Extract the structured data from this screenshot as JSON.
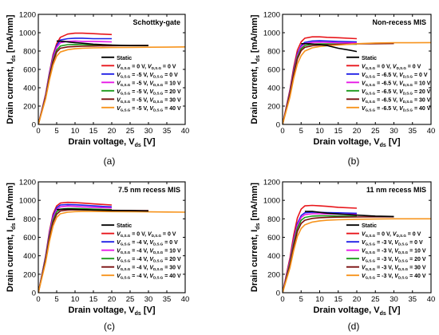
{
  "figure": {
    "panel_labels": [
      "(a)",
      "(b)",
      "(c)",
      "(d)"
    ]
  },
  "chart_data": [
    {
      "type": "line",
      "title": "Schottky-gate",
      "xlabel": "Drain voltage, V",
      "xlabel_sub": "ds",
      "xlabel_unit": " [V]",
      "ylabel": "Drain current, I",
      "ylabel_sub": "ds",
      "ylabel_unit": " [mA/mm]",
      "xlim": [
        0,
        40
      ],
      "ylim": [
        0,
        1200
      ],
      "xticks": [
        0,
        5,
        10,
        15,
        20,
        25,
        30,
        35,
        40
      ],
      "yticks": [
        0,
        200,
        400,
        600,
        800,
        1000,
        1200
      ],
      "static_label": "Static",
      "legend_position": "right",
      "series": [
        {
          "name": "V_G,S.G = 0 V, V_D,S.G = 0 V",
          "vgs": "0",
          "vds": "0",
          "color": "#e8161b",
          "static": false,
          "x": [
            0,
            2,
            3,
            4,
            5,
            6,
            8,
            10,
            12,
            15,
            17,
            20
          ],
          "y": [
            0,
            330,
            560,
            760,
            880,
            950,
            985,
            995,
            995,
            990,
            985,
            980
          ]
        },
        {
          "name": "V_G,S.G = -5 V, V_D,S.G = 0 V",
          "vgs": "-5",
          "vds": "0",
          "color": "#1f1fe6",
          "static": false,
          "x": [
            0,
            2,
            3,
            4,
            5,
            6,
            8,
            10,
            12,
            15,
            20
          ],
          "y": [
            0,
            320,
            550,
            740,
            860,
            920,
            935,
            940,
            940,
            935,
            935
          ]
        },
        {
          "name": "V_G,S.G = -5 V, V_D,S.G = 10 V",
          "vgs": "-5",
          "vds": "10",
          "color": "#e619e6",
          "static": false,
          "x": [
            0,
            2,
            3,
            4,
            5,
            6,
            8,
            10,
            12,
            15,
            20
          ],
          "y": [
            0,
            315,
            540,
            725,
            840,
            890,
            905,
            910,
            905,
            905,
            900
          ]
        },
        {
          "name": "V_G,S.G = -5 V, V_D,S.G = 20 V",
          "vgs": "-5",
          "vds": "20",
          "color": "#1a9a1a",
          "static": false,
          "x": [
            0,
            2,
            3,
            4,
            5,
            6,
            8,
            10,
            12,
            15,
            20
          ],
          "y": [
            0,
            305,
            520,
            700,
            810,
            855,
            870,
            872,
            870,
            868,
            865
          ]
        },
        {
          "name": "V_G,S.G = -5 V, V_D,S.G = 30 V",
          "vgs": "-5",
          "vds": "30",
          "color": "#7a0f0f",
          "static": false,
          "x": [
            0,
            2,
            3,
            4,
            5,
            6,
            8,
            10,
            12,
            15,
            20,
            25,
            30
          ],
          "y": [
            0,
            295,
            505,
            680,
            790,
            830,
            845,
            850,
            852,
            855,
            858,
            860,
            862
          ]
        },
        {
          "name": "V_G,S.G = -5 V, V_D,S.G = 40 V",
          "vgs": "-5",
          "vds": "40",
          "color": "#f7941d",
          "static": false,
          "x": [
            0,
            2,
            3,
            4,
            5,
            6,
            8,
            10,
            12,
            15,
            20,
            25,
            30,
            35,
            40
          ],
          "y": [
            0,
            280,
            480,
            645,
            745,
            790,
            815,
            825,
            830,
            835,
            838,
            840,
            842,
            843,
            845
          ]
        },
        {
          "name": "Static",
          "color": "#000000",
          "static": true,
          "x": [
            5,
            7,
            9,
            12,
            15,
            20,
            25,
            30
          ],
          "y": [
            910,
            905,
            895,
            885,
            875,
            865,
            860,
            860
          ]
        }
      ]
    },
    {
      "type": "line",
      "title": "Non-recess MIS",
      "xlabel": "Drain voltage, V",
      "xlabel_sub": "ds",
      "xlabel_unit": " [V]",
      "ylabel": "Drain current, I",
      "ylabel_sub": "ds",
      "ylabel_unit": " [mA/mm]",
      "xlim": [
        0,
        40
      ],
      "ylim": [
        0,
        1200
      ],
      "xticks": [
        0,
        5,
        10,
        15,
        20,
        25,
        30,
        35,
        40
      ],
      "yticks": [
        0,
        200,
        400,
        600,
        800,
        1000,
        1200
      ],
      "static_label": "Static",
      "legend_position": "right",
      "series": [
        {
          "name": "V_G,S.G = 0 V, V_D,S.G = 0 V",
          "vgs": "0",
          "vds": "0",
          "color": "#e8161b",
          "static": false,
          "x": [
            0,
            2,
            3,
            4,
            5,
            6,
            8,
            10,
            12,
            15,
            20
          ],
          "y": [
            0,
            380,
            620,
            810,
            900,
            940,
            955,
            955,
            950,
            945,
            935
          ]
        },
        {
          "name": "V_G,S.G = -6.5 V, V_D,S.G = 0 V",
          "vgs": "-6.5",
          "vds": "0",
          "color": "#1f1fe6",
          "static": false,
          "x": [
            0,
            2,
            3,
            4,
            5,
            6,
            8,
            10,
            12,
            15,
            20
          ],
          "y": [
            0,
            360,
            590,
            770,
            860,
            895,
            910,
            912,
            910,
            905,
            900
          ]
        },
        {
          "name": "V_G,S.G = -6.5 V, V_D,S.G = 10 V",
          "vgs": "-6.5",
          "vds": "10",
          "color": "#e619e6",
          "static": false,
          "x": [
            0,
            2,
            3,
            4,
            5,
            6,
            8,
            10,
            12,
            15,
            20
          ],
          "y": [
            0,
            350,
            575,
            755,
            845,
            880,
            895,
            897,
            895,
            890,
            888
          ]
        },
        {
          "name": "V_G,S.G = -6.5 V, V_D,S.G = 20 V",
          "vgs": "-6.5",
          "vds": "20",
          "color": "#1a9a1a",
          "static": false,
          "x": [
            0,
            2,
            3,
            4,
            5,
            6,
            8,
            10,
            12,
            15,
            20
          ],
          "y": [
            0,
            340,
            560,
            735,
            825,
            860,
            875,
            878,
            878,
            876,
            875
          ]
        },
        {
          "name": "V_G,S.G = -6.5 V, V_D,S.G = 30 V",
          "vgs": "-6.5",
          "vds": "30",
          "color": "#7a0f0f",
          "static": false,
          "x": [
            0,
            2,
            3,
            4,
            5,
            6,
            8,
            10,
            12,
            15,
            20,
            25,
            30
          ],
          "y": [
            0,
            330,
            545,
            715,
            805,
            840,
            858,
            865,
            868,
            872,
            878,
            880,
            882
          ]
        },
        {
          "name": "V_G,S.G = -6.5 V, V_D,S.G = 40 V",
          "vgs": "-6.5",
          "vds": "40",
          "color": "#f7941d",
          "static": false,
          "x": [
            0,
            2,
            3,
            4,
            5,
            6,
            8,
            10,
            12,
            15,
            20,
            25,
            30,
            35,
            40
          ],
          "y": [
            0,
            300,
            500,
            660,
            750,
            800,
            835,
            850,
            858,
            865,
            880,
            888,
            890,
            890,
            892
          ]
        },
        {
          "name": "Static",
          "color": "#000000",
          "static": true,
          "x": [
            5,
            7,
            9,
            12,
            15,
            18,
            20
          ],
          "y": [
            880,
            880,
            875,
            860,
            830,
            810,
            795
          ]
        }
      ]
    },
    {
      "type": "line",
      "title": "7.5 nm recess MIS",
      "xlabel": "Drain voltage, V",
      "xlabel_sub": "ds",
      "xlabel_unit": " [V]",
      "ylabel": "Drain current, I",
      "ylabel_sub": "ds",
      "ylabel_unit": " [mA/mm]",
      "xlim": [
        0,
        40
      ],
      "ylim": [
        0,
        1200
      ],
      "xticks": [
        0,
        5,
        10,
        15,
        20,
        25,
        30,
        35,
        40
      ],
      "yticks": [
        0,
        200,
        400,
        600,
        800,
        1000,
        1200
      ],
      "static_label": "Static",
      "legend_position": "right",
      "series": [
        {
          "name": "V_G,S.G = 0 V, V_D,S.G = 0 V",
          "vgs": "0",
          "vds": "0",
          "color": "#e8161b",
          "static": false,
          "x": [
            0,
            2,
            3,
            4,
            5,
            6,
            8,
            10,
            12,
            15,
            20
          ],
          "y": [
            0,
            400,
            660,
            850,
            940,
            970,
            978,
            975,
            970,
            962,
            950
          ]
        },
        {
          "name": "V_G,S.G = -4 V, V_D,S.G = 0 V",
          "vgs": "-4",
          "vds": "0",
          "color": "#1f1fe6",
          "static": false,
          "x": [
            0,
            2,
            3,
            4,
            5,
            6,
            8,
            10,
            12,
            15,
            20
          ],
          "y": [
            0,
            390,
            640,
            830,
            920,
            950,
            955,
            952,
            948,
            940,
            930
          ]
        },
        {
          "name": "V_G,S.G = -4 V, V_D,S.G = 10 V",
          "vgs": "-4",
          "vds": "10",
          "color": "#e619e6",
          "static": false,
          "x": [
            0,
            2,
            3,
            4,
            5,
            6,
            8,
            10,
            12,
            15,
            20
          ],
          "y": [
            0,
            380,
            625,
            810,
            900,
            930,
            938,
            935,
            930,
            925,
            918
          ]
        },
        {
          "name": "V_G,S.G = -4 V, V_D,S.G = 20 V",
          "vgs": "-4",
          "vds": "20",
          "color": "#1a9a1a",
          "static": false,
          "x": [
            0,
            2,
            3,
            4,
            5,
            6,
            8,
            10,
            12,
            15,
            20
          ],
          "y": [
            0,
            370,
            605,
            785,
            875,
            905,
            912,
            912,
            910,
            905,
            900
          ]
        },
        {
          "name": "V_G,S.G = -4 V, V_D,S.G = 30 V",
          "vgs": "-4",
          "vds": "30",
          "color": "#7a0f0f",
          "static": false,
          "x": [
            0,
            2,
            3,
            4,
            5,
            6,
            8,
            10,
            12,
            15,
            20,
            25,
            30
          ],
          "y": [
            0,
            355,
            585,
            760,
            850,
            885,
            895,
            898,
            897,
            895,
            892,
            890,
            888
          ]
        },
        {
          "name": "V_G,S.G = -4 V, V_D,S.G = 40 V",
          "vgs": "-4",
          "vds": "40",
          "color": "#f7941d",
          "static": false,
          "x": [
            0,
            2,
            3,
            4,
            5,
            6,
            8,
            10,
            12,
            15,
            20,
            25,
            30,
            35,
            40
          ],
          "y": [
            0,
            330,
            550,
            720,
            815,
            855,
            872,
            878,
            880,
            880,
            878,
            876,
            875,
            874,
            872
          ]
        },
        {
          "name": "Static",
          "color": "#000000",
          "static": true,
          "x": [
            5,
            7,
            9,
            12,
            15,
            20,
            25,
            30
          ],
          "y": [
            900,
            905,
            905,
            900,
            895,
            890,
            888,
            885
          ]
        }
      ]
    },
    {
      "type": "line",
      "title": "11 nm recess MIS",
      "xlabel": "Drain voltage, V",
      "xlabel_sub": "ds",
      "xlabel_unit": " [V]",
      "ylabel": "Drain current, I",
      "ylabel_sub": "ds",
      "ylabel_unit": " [mA/mm]",
      "xlim": [
        0,
        40
      ],
      "ylim": [
        0,
        1200
      ],
      "xticks": [
        0,
        5,
        10,
        15,
        20,
        25,
        30,
        35,
        40
      ],
      "yticks": [
        0,
        200,
        400,
        600,
        800,
        1000,
        1200
      ],
      "static_label": "Static",
      "legend_position": "right",
      "series": [
        {
          "name": "V_G,S.G = 0 V, V_D,S.G = 0 V",
          "vgs": "0",
          "vds": "0",
          "color": "#e8161b",
          "static": false,
          "x": [
            0,
            2,
            3,
            4,
            5,
            6,
            8,
            10,
            12,
            15,
            20
          ],
          "y": [
            0,
            380,
            620,
            810,
            905,
            940,
            945,
            940,
            935,
            925,
            915
          ]
        },
        {
          "name": "V_G,S.G = -3 V, V_D,S.G = 0 V",
          "vgs": "-3",
          "vds": "0",
          "color": "#1f1fe6",
          "static": false,
          "x": [
            0,
            2,
            3,
            4,
            5,
            6,
            8,
            10,
            12,
            15,
            20
          ],
          "y": [
            0,
            350,
            575,
            750,
            835,
            865,
            872,
            870,
            868,
            865,
            860
          ]
        },
        {
          "name": "V_G,S.G = -3 V, V_D,S.G = 10 V",
          "vgs": "-3",
          "vds": "10",
          "color": "#e619e6",
          "static": false,
          "x": [
            0,
            2,
            3,
            4,
            5,
            6,
            8,
            10,
            12,
            15,
            20
          ],
          "y": [
            0,
            340,
            560,
            730,
            815,
            845,
            855,
            855,
            853,
            850,
            848
          ]
        },
        {
          "name": "V_G,S.G = -3 V, V_D,S.G = 20 V",
          "vgs": "-3",
          "vds": "20",
          "color": "#1a9a1a",
          "static": false,
          "x": [
            0,
            2,
            3,
            4,
            5,
            6,
            8,
            10,
            12,
            15,
            20
          ],
          "y": [
            0,
            320,
            530,
            700,
            785,
            815,
            830,
            832,
            832,
            830,
            828
          ]
        },
        {
          "name": "V_G,S.G = -3 V, V_D,S.G = 30 V",
          "vgs": "-3",
          "vds": "30",
          "color": "#7a0f0f",
          "static": false,
          "x": [
            0,
            2,
            3,
            4,
            5,
            6,
            8,
            10,
            12,
            15,
            20,
            25,
            30
          ],
          "y": [
            0,
            300,
            500,
            665,
            750,
            785,
            805,
            812,
            815,
            818,
            820,
            822,
            822
          ]
        },
        {
          "name": "V_G,S.G = -3 V, V_D,S.G = 40 V",
          "vgs": "-3",
          "vds": "40",
          "color": "#f7941d",
          "static": false,
          "x": [
            0,
            2,
            3,
            4,
            5,
            6,
            8,
            10,
            12,
            15,
            20,
            25,
            30,
            35,
            40
          ],
          "y": [
            0,
            270,
            455,
            610,
            695,
            735,
            765,
            778,
            785,
            790,
            795,
            798,
            800,
            800,
            800
          ]
        },
        {
          "name": "Static",
          "color": "#000000",
          "static": true,
          "x": [
            6,
            8,
            10,
            12,
            15,
            20,
            25,
            30
          ],
          "y": [
            880,
            880,
            870,
            862,
            852,
            840,
            830,
            825
          ]
        }
      ]
    }
  ]
}
